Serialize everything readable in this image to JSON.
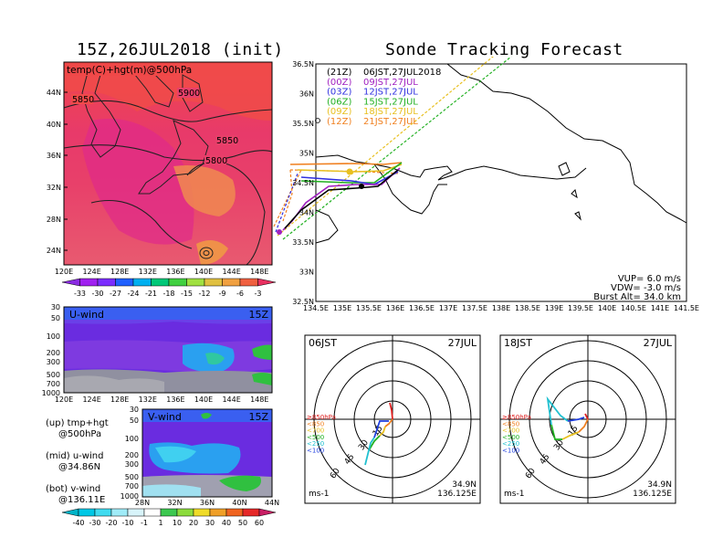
{
  "main_title": "Sonde Tracking Forecast",
  "map_panel": {
    "title": "15Z,26JUL2018 (init)",
    "inner_label": "temp(C)+hgt(m)@500hPa",
    "lat_labels": [
      "44N",
      "40N",
      "36N",
      "32N",
      "28N",
      "24N"
    ],
    "lon_labels": [
      "120E",
      "124E",
      "128E",
      "132E",
      "136E",
      "140E",
      "144E",
      "148E"
    ],
    "contour_labels": [
      "5850",
      "5900",
      "5850",
      "5800"
    ],
    "colorbar_labels": [
      "-33",
      "-30",
      "-27",
      "-24",
      "-21",
      "-18",
      "-15",
      "-12",
      "-9",
      "-6",
      "-3"
    ],
    "colorbar_colors": [
      "#8a2be2",
      "#a020f0",
      "#7b2cff",
      "#2060ff",
      "#00b0f0",
      "#00c878",
      "#40d040",
      "#a0e040",
      "#e0c040",
      "#f0a040",
      "#f06040",
      "#e83060"
    ]
  },
  "uwind_panel": {
    "label": "U-wind",
    "time": "15Z",
    "p_labels": [
      "30",
      "50",
      "100",
      "200",
      "300",
      "500",
      "700",
      "1000"
    ],
    "lon_labels": [
      "120E",
      "124E",
      "128E",
      "132E",
      "136E",
      "140E",
      "144E",
      "148E"
    ]
  },
  "vwind_panel": {
    "label": "V-wind",
    "time": "15Z",
    "p_labels": [
      "30",
      "50",
      "100",
      "200",
      "300",
      "500",
      "700",
      "1000"
    ],
    "lat_labels": [
      "28N",
      "32N",
      "36N",
      "40N",
      "44N"
    ],
    "colorbar_labels": [
      "-40",
      "-30",
      "-20",
      "-10",
      "-1",
      "1",
      "10",
      "20",
      "30",
      "40",
      "50",
      "60"
    ],
    "colorbar_colors": [
      "#00b4c8",
      "#00c8e6",
      "#40dcf0",
      "#a0ecf8",
      "#d8f4fa",
      "#ffffff",
      "#3cc850",
      "#8cdc3c",
      "#f0dc28",
      "#f0a028",
      "#f06420",
      "#e62828",
      "#c81e64"
    ]
  },
  "legend_text": [
    {
      "line1": "(up) tmp+hgt",
      "line2": "@500hPa"
    },
    {
      "line1": "(mid) u-wind",
      "line2": "@34.86N"
    },
    {
      "line1": "(bot) v-wind",
      "line2": "@136.11E"
    }
  ],
  "track_panel": {
    "lat_labels": [
      "36.5N",
      "36N",
      "35.5N",
      "35N",
      "34.5N",
      "34N",
      "33.5N",
      "33N",
      "32.5N"
    ],
    "lon_labels": [
      "134.5E",
      "135E",
      "135.5E",
      "136E",
      "136.5E",
      "137E",
      "137.5E",
      "138E",
      "138.5E",
      "139E",
      "139.5E",
      "140E",
      "140.5E",
      "141E",
      "141.5E"
    ],
    "launches": [
      {
        "code": "(21Z)",
        "label": "06JST,27JUL2018",
        "color": "#000000"
      },
      {
        "code": "(00Z)",
        "label": "09JST,27JUL",
        "color": "#a020c0"
      },
      {
        "code": "(03Z)",
        "label": "12JST,27JUL",
        "color": "#3030e0"
      },
      {
        "code": "(06Z)",
        "label": "15JST,27JUL",
        "color": "#20b020"
      },
      {
        "code": "(09Z)",
        "label": "18JST,27JUL",
        "color": "#e8c020"
      },
      {
        "code": "(12Z)",
        "label": "21JST,27JUL",
        "color": "#f08020"
      }
    ],
    "params": {
      "vup": "VUP=  6.0 m/s",
      "vdw": "VDW= -3.0 m/s",
      "burst": "Burst Alt= 34.0 km"
    }
  },
  "hodo_left": {
    "time": "06JST",
    "date": "27JUL",
    "pos1": "34.9N",
    "pos2": "136.125E",
    "unit": "ms-1",
    "ring_labels": [
      "15",
      "30",
      "45",
      "60"
    ],
    "levels": [
      {
        "label": "≥850hPa",
        "color": "#e02020"
      },
      {
        "label": "<850",
        "color": "#f08020"
      },
      {
        "label": "<700",
        "color": "#e8c020"
      },
      {
        "label": "<500",
        "color": "#20b020"
      },
      {
        "label": "<250",
        "color": "#20c0d0"
      },
      {
        "label": "<100",
        "color": "#2040e0"
      }
    ]
  },
  "hodo_right": {
    "time": "18JST",
    "date": "27JUL",
    "pos1": "34.9N",
    "pos2": "136.125E",
    "unit": "ms-1",
    "ring_labels": [
      "15",
      "30",
      "45",
      "60"
    ],
    "levels": [
      {
        "label": "≥850hPa",
        "color": "#e02020"
      },
      {
        "label": "<850",
        "color": "#f08020"
      },
      {
        "label": "<700",
        "color": "#e8c020"
      },
      {
        "label": "<500",
        "color": "#20b020"
      },
      {
        "label": "<250",
        "color": "#20c0d0"
      },
      {
        "label": "<100",
        "color": "#2040e0"
      }
    ]
  }
}
